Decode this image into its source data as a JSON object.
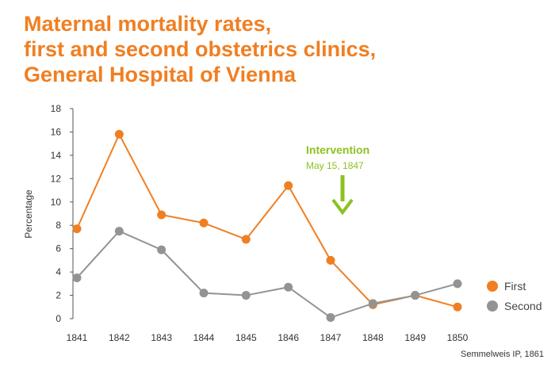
{
  "chart_data": {
    "type": "line",
    "title": [
      "Maternal mortality rates,",
      "first and second obstetrics clinics,",
      "General Hospital of Vienna"
    ],
    "ylabel": "Percentage",
    "xlabel": "",
    "ylim": [
      0,
      18
    ],
    "yticks": [
      "0",
      "2",
      "4",
      "6",
      "8",
      "10",
      "12",
      "14",
      "16",
      "18"
    ],
    "categories": [
      "1841",
      "1842",
      "1843",
      "1844",
      "1845",
      "1846",
      "1847",
      "1848",
      "1849",
      "1850"
    ],
    "series": [
      {
        "name": "First",
        "color": "#f07f22",
        "values": [
          7.7,
          15.8,
          8.9,
          8.2,
          6.8,
          11.4,
          5.0,
          1.2,
          2.0,
          1.0
        ]
      },
      {
        "name": "Second",
        "color": "#939393",
        "values": [
          3.5,
          7.5,
          5.9,
          2.2,
          2.0,
          2.7,
          0.1,
          1.3,
          2.0,
          3.0
        ]
      }
    ],
    "annotation": {
      "title": "Intervention",
      "subtitle": "May 15, 1847",
      "color": "#8cc21e"
    },
    "legend": "right",
    "grid": false,
    "source": "Semmelweis IP, 1861"
  }
}
